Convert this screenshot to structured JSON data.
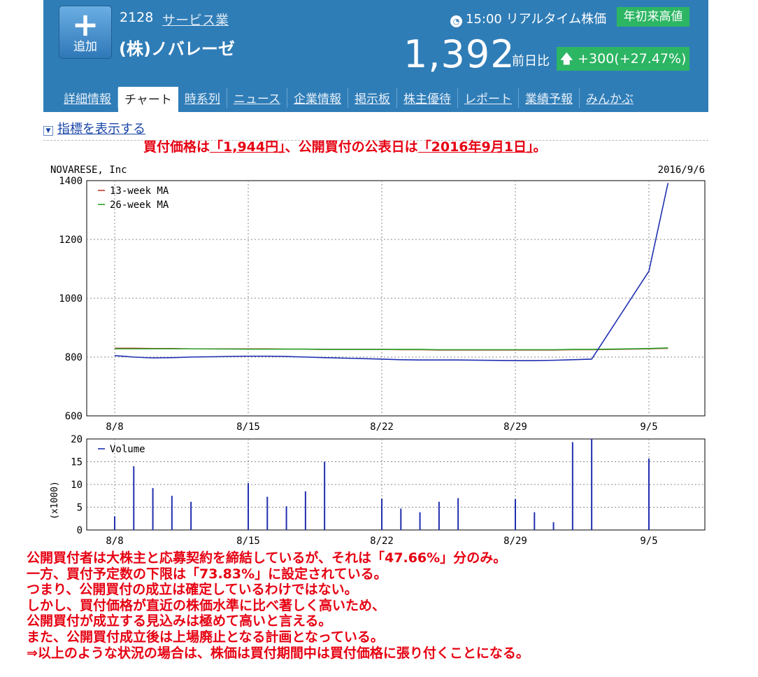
{
  "header": {
    "add_button_label": "追加",
    "code": "2128",
    "sector": "サービス業",
    "company_name": "(株)ノバレーゼ",
    "time": "15:00",
    "realtime_label": "リアルタイム株価",
    "badge": "年初来高値",
    "price": "1,392",
    "prev_label": "前日比",
    "change": "+300",
    "change_pct": "(+27.47%)",
    "tabs": [
      {
        "label": "詳細情報"
      },
      {
        "label": "チャート"
      },
      {
        "label": "時系列"
      },
      {
        "label": "ニュース"
      },
      {
        "label": "企業情報"
      },
      {
        "label": "掲示板"
      },
      {
        "label": "株主優待"
      },
      {
        "label": "レポート"
      },
      {
        "label": "業績予報"
      },
      {
        "label": "みんかぶ"
      }
    ],
    "active_tab": 1,
    "colors": {
      "header_bg": "#2f7db7",
      "badge_bg": "#2cb563"
    }
  },
  "indicator_link": "指標を表示する",
  "headline": {
    "p1": "買付価格は",
    "v1": "「1,944円」",
    "p2": "、公開買付の公表日は",
    "v2": "「2016年9月1日」",
    "p3": "。"
  },
  "notes": [
    "公開買付者は大株主と応募契約を締結しているが、それは「47.66%」分のみ。",
    "一方、買付予定数の下限は「73.83%」に設定されている。",
    "つまり、公開買付の成立は確定しているわけではない。",
    "しかし、買付価格が直近の株価水準に比べ著しく高いため、",
    "公開買付が成立する見込みは極めて高いと言える。",
    "また、公開買付成立後は上場廃止となる計画となっている。",
    "⇒以上のような状況の場合は、株価は買付期間中は買付価格に張り付くことになる。"
  ],
  "chart_data": [
    {
      "type": "line",
      "title": "NOVARESE, Inc",
      "date_label": "2016/9/6",
      "ylim": [
        600,
        1400
      ],
      "yticks": [
        600,
        800,
        1000,
        1200,
        1400
      ],
      "xticks": [
        {
          "label": "8/8",
          "day": 8
        },
        {
          "label": "8/15",
          "day": 15
        },
        {
          "label": "8/22",
          "day": 22
        },
        {
          "label": "8/29",
          "day": 29
        },
        {
          "label": "9/5",
          "day": 36
        }
      ],
      "grid": true,
      "legend": "top-left",
      "series": [
        {
          "name": "13-week MA",
          "color": "#c0392b",
          "x": [
            8,
            9,
            10,
            11,
            12,
            15,
            16,
            17,
            18,
            19,
            22,
            23,
            24,
            25,
            26,
            29,
            30,
            31,
            32,
            33,
            36,
            37
          ],
          "y": [
            830,
            830,
            829,
            829,
            828,
            828,
            828,
            827,
            827,
            826,
            826,
            825,
            825,
            824,
            824,
            824,
            824,
            824,
            825,
            825,
            828,
            830
          ]
        },
        {
          "name": "26-week MA",
          "color": "#2ca02c",
          "x": [
            8,
            9,
            10,
            11,
            12,
            15,
            16,
            17,
            18,
            19,
            22,
            23,
            24,
            25,
            26,
            29,
            30,
            31,
            32,
            33,
            36,
            37
          ],
          "y": [
            828,
            828,
            828,
            828,
            828,
            827,
            827,
            827,
            827,
            826,
            826,
            826,
            826,
            825,
            825,
            825,
            825,
            825,
            826,
            826,
            829,
            831
          ]
        },
        {
          "name": "",
          "color": "#1f2fb0",
          "x": [
            8,
            9,
            10,
            11,
            12,
            15,
            16,
            17,
            18,
            19,
            22,
            23,
            24,
            25,
            26,
            29,
            30,
            31,
            32,
            33,
            36,
            37
          ],
          "y": [
            805,
            800,
            797,
            798,
            800,
            803,
            803,
            802,
            800,
            798,
            793,
            791,
            790,
            790,
            790,
            788,
            788,
            789,
            791,
            793,
            1092,
            1392
          ]
        }
      ]
    },
    {
      "type": "bar",
      "ylabel": "(x1000)",
      "ylim": [
        0,
        20
      ],
      "yticks": [
        0,
        5,
        10,
        15,
        20
      ],
      "xticks": [
        {
          "label": "8/8",
          "day": 8
        },
        {
          "label": "8/15",
          "day": 15
        },
        {
          "label": "8/22",
          "day": 22
        },
        {
          "label": "8/29",
          "day": 29
        },
        {
          "label": "9/5",
          "day": 36
        }
      ],
      "grid": true,
      "legend": "top-left",
      "series": [
        {
          "name": "Volume",
          "color": "#1f2fb0",
          "x": [
            8,
            9,
            10,
            11,
            12,
            15,
            16,
            17,
            18,
            19,
            22,
            23,
            24,
            25,
            26,
            29,
            30,
            31,
            32,
            33,
            36,
            37
          ],
          "values": [
            3,
            14,
            9.2,
            7.5,
            6.2,
            10.3,
            7.3,
            5.2,
            8.5,
            15,
            6.9,
            4.7,
            3.9,
            6.2,
            7,
            6.8,
            3.9,
            1.7,
            19.3,
            20,
            15.7,
            0
          ]
        }
      ]
    }
  ]
}
